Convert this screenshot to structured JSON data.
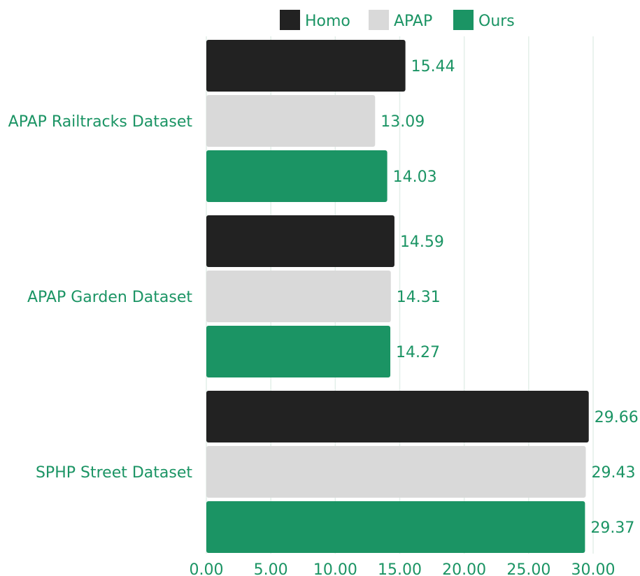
{
  "chart_data": {
    "type": "bar",
    "orientation": "horizontal",
    "categories": [
      "APAP Railtracks Dataset",
      "APAP Garden Dataset",
      "SPHP Street Dataset"
    ],
    "series": [
      {
        "name": "Homo",
        "values": [
          15.44,
          14.59,
          29.66
        ],
        "labels": [
          "15.44",
          "14.59",
          "29.66"
        ],
        "color": "#222222"
      },
      {
        "name": "APAP",
        "values": [
          13.09,
          14.31,
          29.43
        ],
        "labels": [
          "13.09",
          "14.31",
          "29.43"
        ],
        "color": "#d9d9d9"
      },
      {
        "name": "Ours",
        "values": [
          14.03,
          14.27,
          29.37
        ],
        "labels": [
          "14.03",
          "14.27",
          "29.37"
        ],
        "color": "#1b9464"
      }
    ],
    "xlim": [
      0,
      30
    ],
    "xticks": [
      0,
      5,
      10,
      15,
      20,
      25,
      30
    ],
    "xtick_labels": [
      "0.00",
      "5.00",
      "10.00",
      "15.00",
      "20.00",
      "25.00",
      "30.00"
    ],
    "grid": "vertical",
    "legend_position": "top",
    "text_color": "#1b9464",
    "grid_color": "#e3efe9"
  }
}
